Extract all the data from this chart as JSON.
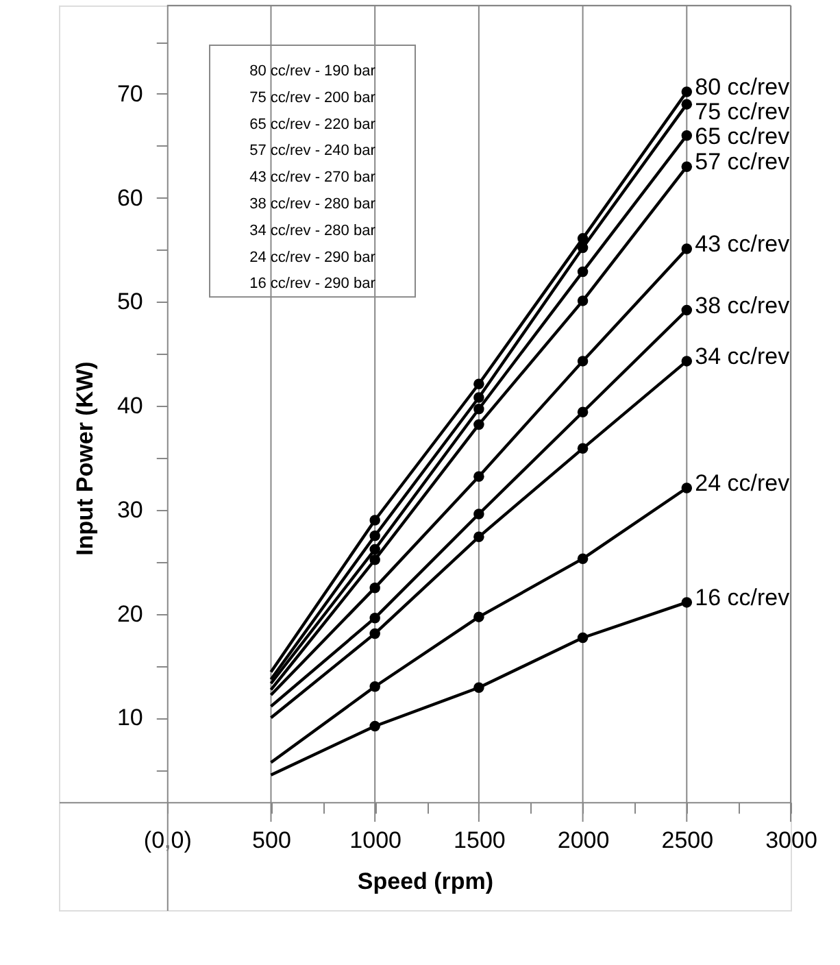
{
  "chart_data": {
    "type": "line",
    "xlabel": "Speed (rpm)",
    "ylabel": "Input Power (KW)",
    "x": [
      500,
      1000,
      1500,
      2000,
      2500
    ],
    "series": [
      {
        "name": "80 cc/rev",
        "color": "#000000",
        "values": [
          14.4,
          29.0,
          42.1,
          56.1,
          70.2
        ]
      },
      {
        "name": "75 cc/rev",
        "color": "#000000",
        "values": [
          13.7,
          27.5,
          40.8,
          55.2,
          69.0
        ]
      },
      {
        "name": "65 cc/rev",
        "color": "#000000",
        "values": [
          13.3,
          26.2,
          39.7,
          52.9,
          66.0
        ]
      },
      {
        "name": "57 cc/rev",
        "color": "#000000",
        "values": [
          12.7,
          25.2,
          38.2,
          50.1,
          63.0
        ]
      },
      {
        "name": "43 cc/rev",
        "color": "#000000",
        "values": [
          12.2,
          22.5,
          33.2,
          44.3,
          55.1
        ]
      },
      {
        "name": "38 cc/rev",
        "color": "#000000",
        "values": [
          11.1,
          19.6,
          29.6,
          39.4,
          49.2
        ]
      },
      {
        "name": "34 cc/rev",
        "color": "#000000",
        "values": [
          10.0,
          18.1,
          27.4,
          35.9,
          44.3
        ]
      },
      {
        "name": "24 cc/rev",
        "color": "#000000",
        "values": [
          5.7,
          13.0,
          19.7,
          25.3,
          32.1
        ]
      },
      {
        "name": "16 cc/rev",
        "color": "#000000",
        "values": [
          4.5,
          9.2,
          12.9,
          17.7,
          21.1
        ]
      }
    ],
    "xlim": [
      -520,
      3000
    ],
    "ylim": [
      -8.5,
      78.5
    ],
    "xticks": [
      {
        "value": 0,
        "label": "(0,0)"
      },
      500,
      {
        "value": 750,
        "label": null
      },
      1000,
      {
        "value": 1250,
        "label": null
      },
      1500,
      {
        "value": 1750,
        "label": null
      },
      2000,
      {
        "value": 2250,
        "label": null
      },
      2500,
      {
        "value": 2750,
        "label": null
      },
      3000
    ],
    "yticks": [
      {
        "value": 5,
        "label": null
      },
      10,
      {
        "value": 15,
        "label": null
      },
      20,
      {
        "value": 25,
        "label": null
      },
      30,
      {
        "value": 35,
        "label": null
      },
      40,
      {
        "value": 45,
        "label": null
      },
      50,
      {
        "value": 55,
        "label": null
      },
      60,
      {
        "value": 65,
        "label": null
      },
      70,
      {
        "value": 75,
        "label": null
      }
    ],
    "grid": "x",
    "marker": "circle",
    "line_style": "solid",
    "annotations": [
      "80 cc/rev  -  190 bar",
      "75 cc/rev  -  200 bar",
      "65 cc/rev  -  220 bar",
      "57 cc/rev  -  240 bar",
      "43 cc/rev  -  270 bar",
      "38 cc/rev  -  280 bar",
      "34 cc/rev  -  280 bar",
      "24 cc/rev  -  290 bar",
      "16 cc/rev  -  290 bar"
    ]
  }
}
